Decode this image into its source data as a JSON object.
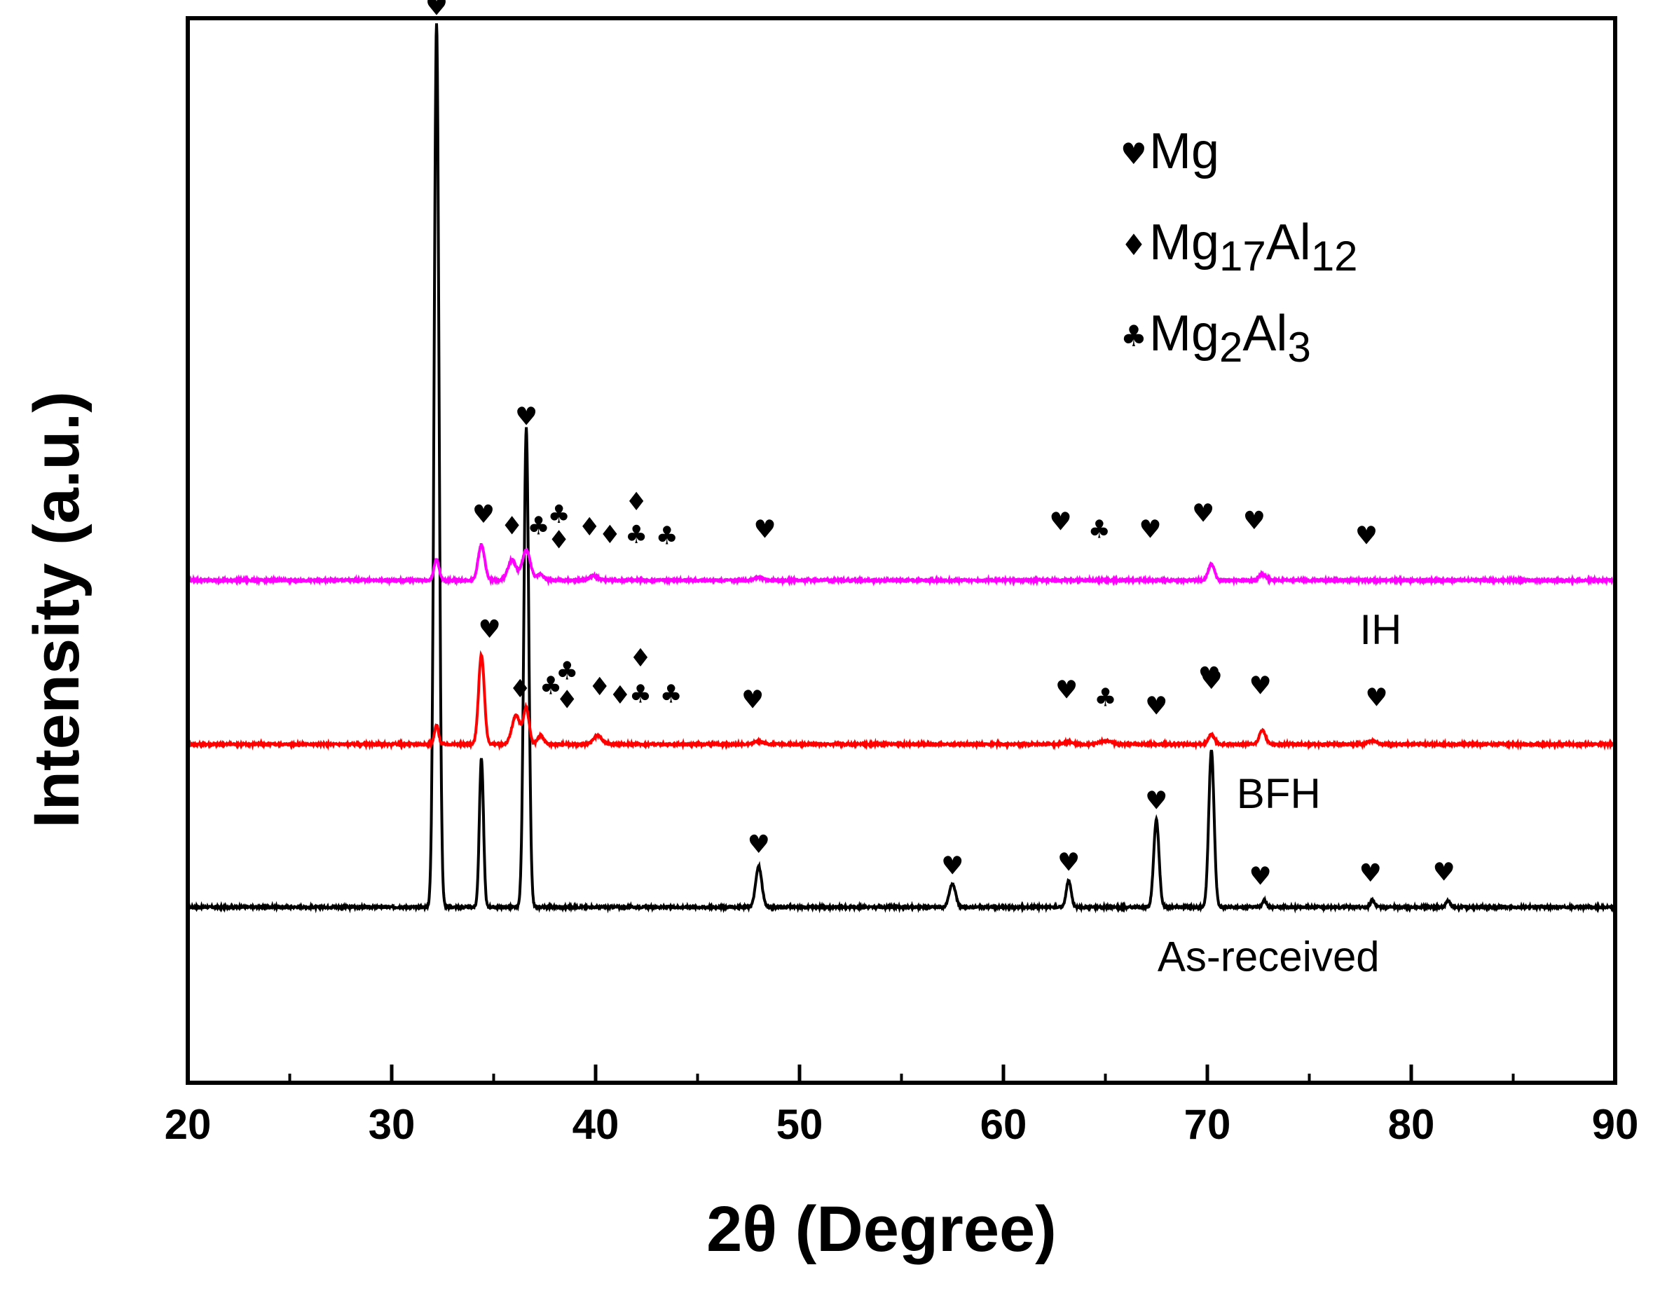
{
  "chart_data": {
    "type": "line",
    "title": "",
    "xlabel": "2θ (Degree)",
    "ylabel": "Intensity (a.u.)",
    "xlim": [
      20,
      90
    ],
    "ylim": [
      0,
      100
    ],
    "xticks": [
      20,
      30,
      40,
      50,
      60,
      70,
      80,
      90
    ],
    "grid": false,
    "legend": {
      "placement": "top-right",
      "entries": [
        {
          "symbol": "♥",
          "base": "Mg",
          "parts": [
            {
              "t": "Mg",
              "sub": false
            }
          ]
        },
        {
          "symbol": "♦",
          "base": "Mg17Al12",
          "parts": [
            {
              "t": "Mg",
              "sub": false
            },
            {
              "t": "17",
              "sub": true
            },
            {
              "t": "Al",
              "sub": false
            },
            {
              "t": "12",
              "sub": true
            }
          ]
        },
        {
          "symbol": "♣",
          "base": "Mg2Al3",
          "parts": [
            {
              "t": "Mg",
              "sub": false
            },
            {
              "t": "2",
              "sub": true
            },
            {
              "t": "Al",
              "sub": false
            },
            {
              "t": "3",
              "sub": true
            }
          ]
        }
      ]
    },
    "series": [
      {
        "name": "As-received",
        "label": "As-received",
        "color": "#000000",
        "baseline": 16.5,
        "label_x": 73,
        "peaks": [
          {
            "x": 32.2,
            "h": 83,
            "w": 0.12
          },
          {
            "x": 34.4,
            "h": 14,
            "w": 0.1
          },
          {
            "x": 36.6,
            "h": 45,
            "w": 0.12
          },
          {
            "x": 48.0,
            "h": 3.8,
            "w": 0.15
          },
          {
            "x": 57.5,
            "h": 2.2,
            "w": 0.15
          },
          {
            "x": 63.2,
            "h": 2.5,
            "w": 0.12
          },
          {
            "x": 67.5,
            "h": 8.2,
            "w": 0.13
          },
          {
            "x": 70.2,
            "h": 14.7,
            "w": 0.13
          },
          {
            "x": 72.8,
            "h": 0.6,
            "w": 0.1
          },
          {
            "x": 78.1,
            "h": 0.7,
            "w": 0.1
          },
          {
            "x": 81.8,
            "h": 0.6,
            "w": 0.1
          }
        ],
        "markers": [
          {
            "x": 32.2,
            "y": 100.3,
            "s": "♥"
          },
          {
            "x": 36.6,
            "y": 61.8,
            "s": "♥"
          },
          {
            "x": 48.0,
            "y": 21.6,
            "s": "♥"
          },
          {
            "x": 57.5,
            "y": 19.6,
            "s": "♥"
          },
          {
            "x": 63.2,
            "y": 19.9,
            "s": "♥"
          },
          {
            "x": 67.5,
            "y": 25.7,
            "s": "♥"
          },
          {
            "x": 70.2,
            "y": 37.0,
            "s": "♥"
          },
          {
            "x": 72.6,
            "y": 18.6,
            "s": "♥"
          },
          {
            "x": 78.0,
            "y": 18.9,
            "s": "♥"
          },
          {
            "x": 81.6,
            "y": 19.0,
            "s": "♥"
          }
        ]
      },
      {
        "name": "BFH",
        "label": "BFH",
        "color": "#ff0000",
        "baseline": 31.8,
        "label_x": 73.5,
        "peaks": [
          {
            "x": 32.2,
            "h": 1.8,
            "w": 0.1
          },
          {
            "x": 34.4,
            "h": 8.4,
            "w": 0.14
          },
          {
            "x": 36.1,
            "h": 2.7,
            "w": 0.2
          },
          {
            "x": 36.6,
            "h": 3.3,
            "w": 0.14
          },
          {
            "x": 37.3,
            "h": 0.8,
            "w": 0.15
          },
          {
            "x": 40.1,
            "h": 0.8,
            "w": 0.2
          },
          {
            "x": 48.0,
            "h": 0.3,
            "w": 0.2
          },
          {
            "x": 63.2,
            "h": 0.2,
            "w": 0.2
          },
          {
            "x": 65.0,
            "h": 0.3,
            "w": 0.3
          },
          {
            "x": 70.2,
            "h": 0.9,
            "w": 0.15
          },
          {
            "x": 72.7,
            "h": 1.3,
            "w": 0.15
          },
          {
            "x": 78.1,
            "h": 0.3,
            "w": 0.2
          }
        ],
        "markers": [
          {
            "x": 34.8,
            "y": 41.8,
            "s": "♥"
          },
          {
            "x": 36.3,
            "y": 36.2,
            "s": "♦"
          },
          {
            "x": 37.8,
            "y": 36.5,
            "s": "♣"
          },
          {
            "x": 38.6,
            "y": 37.9,
            "s": "♣"
          },
          {
            "x": 38.6,
            "y": 35.2,
            "s": "♦"
          },
          {
            "x": 40.2,
            "y": 36.4,
            "s": "♦"
          },
          {
            "x": 41.2,
            "y": 35.6,
            "s": "♦"
          },
          {
            "x": 42.2,
            "y": 39.1,
            "s": "♦"
          },
          {
            "x": 42.2,
            "y": 35.7,
            "s": "♣"
          },
          {
            "x": 43.7,
            "y": 35.7,
            "s": "♣"
          },
          {
            "x": 47.7,
            "y": 35.2,
            "s": "♥"
          },
          {
            "x": 63.1,
            "y": 36.1,
            "s": "♥"
          },
          {
            "x": 65.0,
            "y": 35.4,
            "s": "♣"
          },
          {
            "x": 67.5,
            "y": 34.6,
            "s": "♥"
          },
          {
            "x": 70.1,
            "y": 37.4,
            "s": "♥"
          },
          {
            "x": 72.6,
            "y": 36.5,
            "s": "♥"
          },
          {
            "x": 78.3,
            "y": 35.4,
            "s": "♥"
          }
        ]
      },
      {
        "name": "IH",
        "label": "IH",
        "color": "#ff00ff",
        "baseline": 47.2,
        "label_x": 78.5,
        "peaks": [
          {
            "x": 32.2,
            "h": 2.0,
            "w": 0.12
          },
          {
            "x": 34.4,
            "h": 3.3,
            "w": 0.16
          },
          {
            "x": 35.9,
            "h": 1.9,
            "w": 0.2
          },
          {
            "x": 36.6,
            "h": 2.8,
            "w": 0.2
          },
          {
            "x": 37.3,
            "h": 0.6,
            "w": 0.15
          },
          {
            "x": 39.9,
            "h": 0.4,
            "w": 0.2
          },
          {
            "x": 48.0,
            "h": 0.3,
            "w": 0.2
          },
          {
            "x": 70.2,
            "h": 1.5,
            "w": 0.15
          },
          {
            "x": 72.7,
            "h": 0.6,
            "w": 0.15
          }
        ],
        "markers": [
          {
            "x": 34.5,
            "y": 52.6,
            "s": "♥"
          },
          {
            "x": 35.9,
            "y": 51.5,
            "s": "♦"
          },
          {
            "x": 37.2,
            "y": 51.5,
            "s": "♣"
          },
          {
            "x": 38.2,
            "y": 52.6,
            "s": "♣"
          },
          {
            "x": 38.2,
            "y": 50.2,
            "s": "♦"
          },
          {
            "x": 39.7,
            "y": 51.4,
            "s": "♦"
          },
          {
            "x": 40.7,
            "y": 50.7,
            "s": "♦"
          },
          {
            "x": 42.0,
            "y": 53.8,
            "s": "♦"
          },
          {
            "x": 42.0,
            "y": 50.7,
            "s": "♣"
          },
          {
            "x": 43.5,
            "y": 50.6,
            "s": "♣"
          },
          {
            "x": 48.3,
            "y": 51.2,
            "s": "♥"
          },
          {
            "x": 62.8,
            "y": 51.9,
            "s": "♥"
          },
          {
            "x": 64.7,
            "y": 51.2,
            "s": "♣"
          },
          {
            "x": 67.2,
            "y": 51.2,
            "s": "♥"
          },
          {
            "x": 69.8,
            "y": 52.7,
            "s": "♥"
          },
          {
            "x": 72.3,
            "y": 52.0,
            "s": "♥"
          },
          {
            "x": 77.8,
            "y": 50.6,
            "s": "♥"
          }
        ]
      }
    ]
  }
}
